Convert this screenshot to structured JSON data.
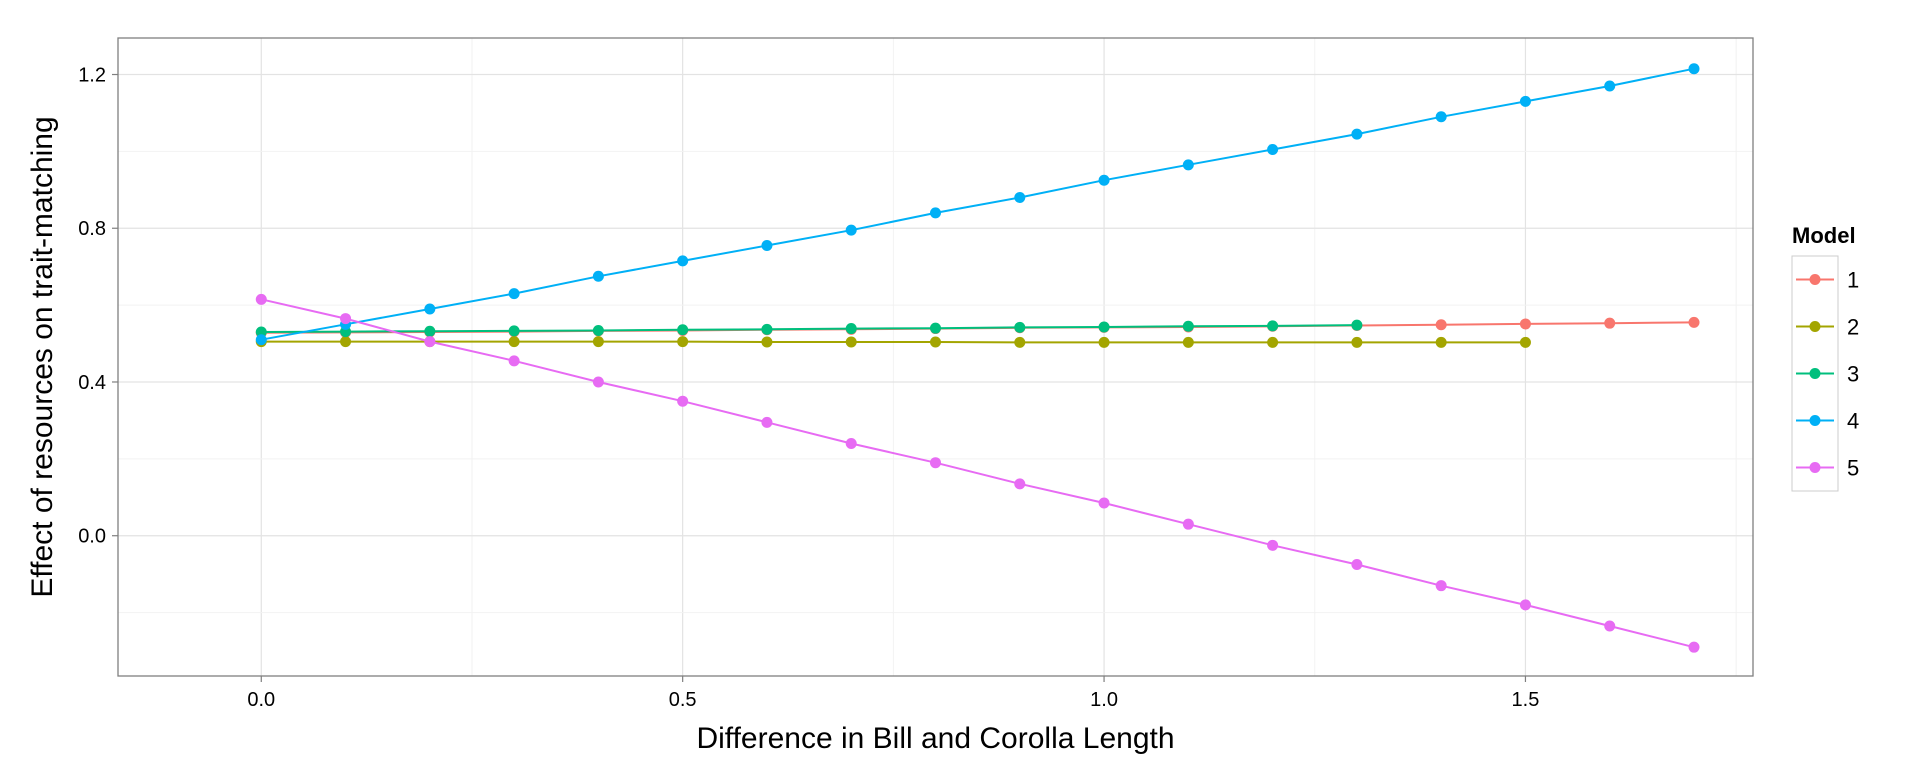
{
  "chart_data": {
    "type": "line",
    "xlabel": "Difference in Bill and Corolla Length",
    "ylabel": "Effect of resources on trait-matching",
    "xlim": [
      -0.17,
      1.77
    ],
    "ylim": [
      -0.365,
      1.295
    ],
    "x_ticks": [
      0.0,
      0.5,
      1.0,
      1.5
    ],
    "x_tick_labels": [
      "0.0",
      "0.5",
      "1.0",
      "1.5"
    ],
    "y_ticks": [
      0.0,
      0.4,
      0.8,
      1.2
    ],
    "y_tick_labels": [
      "0.0",
      "0.4",
      "0.8",
      "1.2"
    ],
    "grid": true,
    "legend_title": "Model",
    "legend_position": "right",
    "series": [
      {
        "name": "1",
        "color": "#F8766D",
        "x": [
          0.0,
          0.1,
          0.2,
          0.3,
          0.4,
          0.5,
          0.6,
          0.7,
          0.8,
          0.9,
          1.0,
          1.1,
          1.2,
          1.3,
          1.4,
          1.5,
          1.6,
          1.7
        ],
        "y": [
          0.528,
          0.529,
          0.53,
          0.531,
          0.533,
          0.534,
          0.536,
          0.537,
          0.539,
          0.541,
          0.542,
          0.543,
          0.545,
          0.547,
          0.549,
          0.551,
          0.553,
          0.555
        ]
      },
      {
        "name": "2",
        "color": "#A3A500",
        "x": [
          0.0,
          0.1,
          0.2,
          0.3,
          0.4,
          0.5,
          0.6,
          0.7,
          0.8,
          0.9,
          1.0,
          1.1,
          1.2,
          1.3,
          1.4,
          1.5
        ],
        "y": [
          0.505,
          0.505,
          0.505,
          0.505,
          0.505,
          0.505,
          0.504,
          0.504,
          0.504,
          0.503,
          0.503,
          0.503,
          0.503,
          0.503,
          0.503,
          0.503
        ]
      },
      {
        "name": "3",
        "color": "#00BF7D",
        "x": [
          0.0,
          0.1,
          0.2,
          0.3,
          0.4,
          0.5,
          0.6,
          0.7,
          0.8,
          0.9,
          1.0,
          1.1,
          1.2,
          1.3
        ],
        "y": [
          0.53,
          0.531,
          0.532,
          0.533,
          0.534,
          0.536,
          0.537,
          0.539,
          0.54,
          0.542,
          0.543,
          0.545,
          0.546,
          0.548
        ]
      },
      {
        "name": "4",
        "color": "#00B0F6",
        "x": [
          0.0,
          0.1,
          0.2,
          0.3,
          0.4,
          0.5,
          0.6,
          0.7,
          0.8,
          0.9,
          1.0,
          1.1,
          1.2,
          1.3,
          1.4,
          1.5,
          1.6,
          1.7
        ],
        "y": [
          0.51,
          0.55,
          0.59,
          0.63,
          0.675,
          0.715,
          0.755,
          0.795,
          0.84,
          0.88,
          0.925,
          0.965,
          1.005,
          1.045,
          1.09,
          1.13,
          1.17,
          1.215
        ]
      },
      {
        "name": "5",
        "color": "#E76BF3",
        "x": [
          0.0,
          0.1,
          0.2,
          0.3,
          0.4,
          0.5,
          0.6,
          0.7,
          0.8,
          0.9,
          1.0,
          1.1,
          1.2,
          1.3,
          1.4,
          1.5,
          1.6,
          1.7
        ],
        "y": [
          0.615,
          0.565,
          0.505,
          0.455,
          0.4,
          0.35,
          0.295,
          0.24,
          0.19,
          0.135,
          0.085,
          0.03,
          -0.025,
          -0.075,
          -0.13,
          -0.18,
          -0.235,
          -0.29
        ]
      }
    ]
  }
}
